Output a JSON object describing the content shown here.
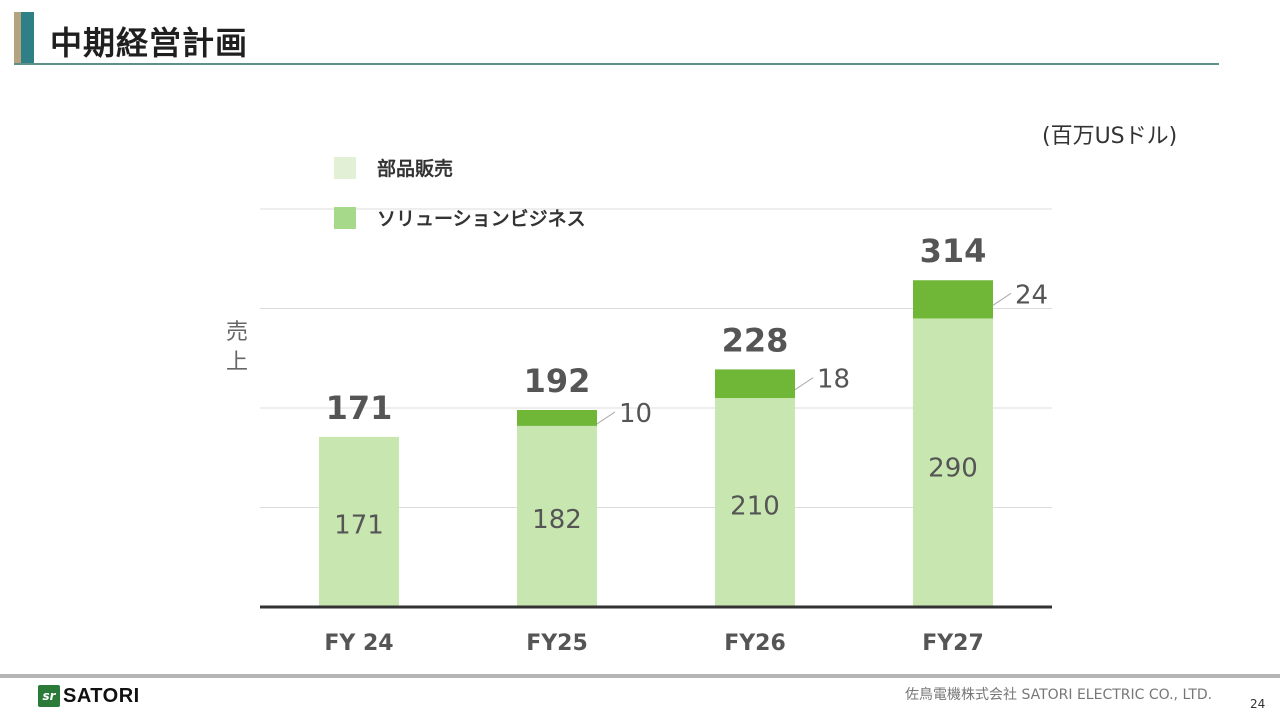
{
  "header": {
    "title": "中期経営計画"
  },
  "unit_label": "(百万USドル)",
  "ylabel_chars": [
    "売",
    "上"
  ],
  "legend": [
    {
      "label": "部品販売",
      "color": "#e2f1d6"
    },
    {
      "label": "ソリューションビジネス",
      "color": "#a6d98a"
    }
  ],
  "colors": {
    "base": "#c8e6b0",
    "top": "#70b637",
    "axis": "#333333",
    "grid": "#dcdcdc"
  },
  "chart_data": {
    "type": "bar",
    "stacked": true,
    "categories": [
      "FY 24",
      "FY25",
      "FY26",
      "FY27"
    ],
    "series": [
      {
        "name": "部品販売",
        "values": [
          171,
          182,
          210,
          290
        ]
      },
      {
        "name": "ソリューションビジネス",
        "values": [
          0,
          10,
          18,
          24
        ]
      }
    ],
    "totals": [
      171,
      192,
      228,
      314
    ],
    "ylim": [
      0,
      400
    ],
    "grid": true
  },
  "footer": {
    "logo_text": "SATORI",
    "company": "佐鳥電機株式会社  SATORI ELECTRIC CO., LTD.",
    "page": "24"
  }
}
